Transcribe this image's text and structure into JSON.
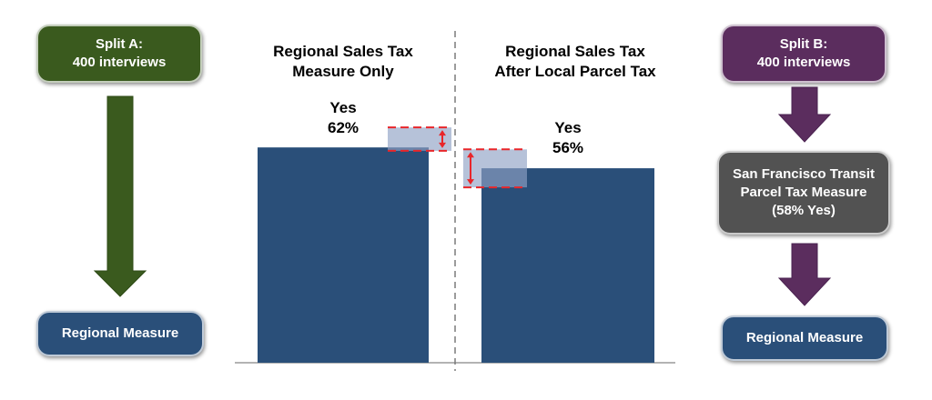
{
  "split_a": {
    "title": "Split A:",
    "subtitle": "400 interviews",
    "color": "#3a5a1e",
    "result_box": "Regional Measure"
  },
  "split_b": {
    "title": "Split B:",
    "subtitle": "400 interviews",
    "color": "#5b2d5e",
    "middle_box": {
      "line1": "San Francisco Transit",
      "line2": "Parcel Tax Measure",
      "line3": "(58% Yes)",
      "color": "#525252"
    },
    "result_box": "Regional Measure"
  },
  "result_box_color": "#2a4f79",
  "chart_data": {
    "type": "bar",
    "categories": [
      "Regional Sales Tax Measure Only",
      "Regional Sales Tax After Local Parcel Tax"
    ],
    "values": [
      62,
      56
    ],
    "unit": "%",
    "bar_color": "#2a4f79",
    "highlight_color": "#e8262a",
    "left": {
      "title_line1": "Regional Sales Tax",
      "title_line2": "Measure Only",
      "label_line1": "Yes",
      "label_line2": "62%"
    },
    "right": {
      "title_line1": "Regional Sales Tax",
      "title_line2": "After Local Parcel Tax",
      "label_line1": "Yes",
      "label_line2": "56%"
    },
    "divider": "dashed vertical line"
  }
}
